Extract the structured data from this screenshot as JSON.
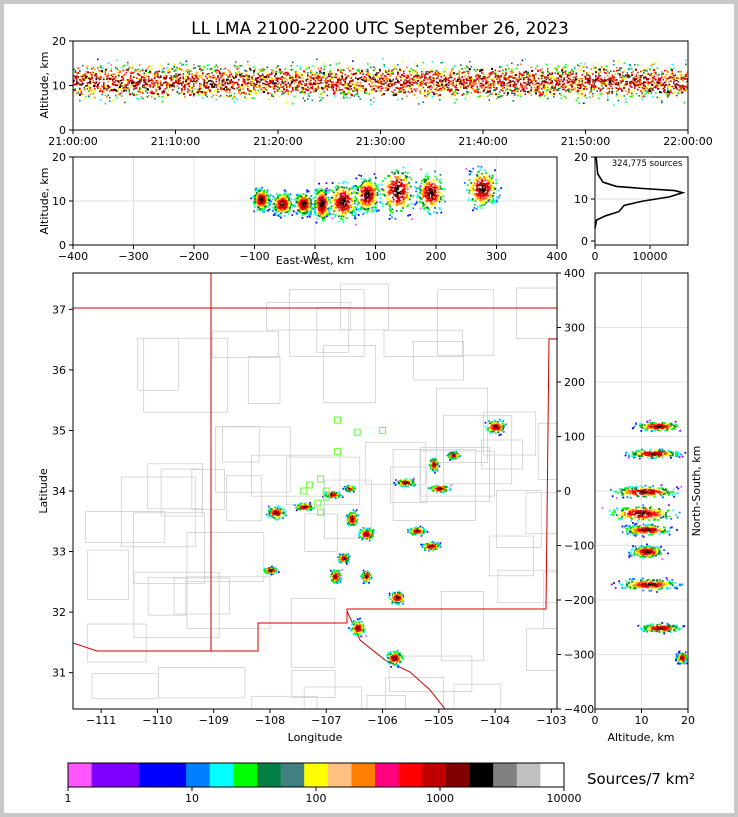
{
  "title": "LL LMA 2100-2200 UTC September 26, 2023",
  "panels": {
    "time_height": {
      "ylabel": "Altitude, km",
      "yticks": [
        "0",
        "10",
        "20"
      ],
      "xticks": [
        "21:00:00",
        "21:10:00",
        "21:20:00",
        "21:30:00",
        "21:40:00",
        "21:50:00",
        "22:00:00"
      ]
    },
    "ew_height": {
      "ylabel": "Altitude, km",
      "xlabel": "East-West, km",
      "yticks": [
        "0",
        "10",
        "20"
      ],
      "xticks": [
        "−400",
        "−300",
        "−200",
        "−100",
        "0",
        "100",
        "200",
        "300",
        "400"
      ]
    },
    "histogram": {
      "annotation": "324,775 sources",
      "yticks": [
        "0",
        "10",
        "20"
      ],
      "xticks": [
        "0",
        "10000"
      ]
    },
    "plan_view": {
      "ylabel": "Latitude",
      "xlabel": "Longitude",
      "yticks": [
        "31",
        "32",
        "33",
        "34",
        "35",
        "36",
        "37"
      ],
      "xticks": [
        "−111",
        "−110",
        "−109",
        "−108",
        "−107",
        "−106",
        "−105",
        "−104",
        "−103"
      ]
    },
    "ns_height": {
      "ylabel": "North-South, km",
      "xlabel": "Altitude, km",
      "yticks": [
        "−400",
        "−300",
        "−200",
        "−100",
        "0",
        "100",
        "200",
        "300",
        "400"
      ],
      "xticks": [
        "0",
        "10",
        "20"
      ]
    }
  },
  "colorbar": {
    "label": "Sources/7 km²",
    "ticks": [
      "1",
      "10",
      "100",
      "1000",
      "10000"
    ],
    "colors": [
      "#ff55ff",
      "#8000ff",
      "#8000ff",
      "#0000ff",
      "#0000ff",
      "#0080ff",
      "#00ffff",
      "#00ff00",
      "#008040",
      "#408080",
      "#ffff00",
      "#ffc080",
      "#ff8000",
      "#ff0080",
      "#ff0000",
      "#c00000",
      "#800000",
      "#000000",
      "#808080",
      "#c0c0c0",
      "#ffffff"
    ]
  },
  "chart_data": [
    {
      "type": "heatmap",
      "title": "LL LMA 2100-2200 UTC September 26, 2023",
      "xlabel": "",
      "ylabel": "Altitude, km",
      "xlim": [
        "21:00:00",
        "22:00:00"
      ],
      "ylim": [
        0,
        20
      ],
      "core_altitude_km": [
        8,
        14
      ]
    },
    {
      "type": "heatmap",
      "xlabel": "East-West, km",
      "ylabel": "Altitude, km",
      "xlim": [
        -400,
        400
      ],
      "ylim": [
        0,
        20
      ],
      "cells": [
        {
          "x": -90,
          "alt": [
            7,
            14
          ]
        },
        {
          "x": -55,
          "alt": [
            6,
            13
          ]
        },
        {
          "x": -20,
          "alt": [
            6,
            13
          ]
        },
        {
          "x": 10,
          "alt": [
            4,
            15
          ]
        },
        {
          "x": 45,
          "alt": [
            4,
            16
          ]
        },
        {
          "x": 85,
          "alt": [
            6,
            17
          ]
        },
        {
          "x": 135,
          "alt": [
            5,
            20
          ]
        },
        {
          "x": 190,
          "alt": [
            6,
            18
          ]
        },
        {
          "x": 275,
          "alt": [
            7,
            19
          ]
        }
      ]
    },
    {
      "type": "line",
      "xlabel": "",
      "ylabel": "",
      "xlim": [
        0,
        17500
      ],
      "ylim": [
        0,
        20
      ],
      "x": [
        0,
        300,
        2000,
        4500,
        5500,
        9000,
        14000,
        16500,
        15000,
        9000,
        4000,
        1500,
        500,
        200
      ],
      "y": [
        3,
        5,
        6,
        7,
        8.5,
        9.5,
        10.5,
        11.5,
        12,
        12.5,
        13,
        14,
        16,
        20
      ]
    },
    {
      "type": "heatmap",
      "xlabel": "Longitude",
      "ylabel": "Latitude",
      "xlim": [
        -111.5,
        -102.9
      ],
      "ylim": [
        30.4,
        37.6
      ],
      "cells": [
        {
          "lon": -104.0,
          "lat": 35.07
        },
        {
          "lon": -104.75,
          "lat": 34.6
        },
        {
          "lon": -105.1,
          "lat": 34.45
        },
        {
          "lon": -105.0,
          "lat": 34.05
        },
        {
          "lon": -105.6,
          "lat": 34.15
        },
        {
          "lon": -106.6,
          "lat": 34.05
        },
        {
          "lon": -106.9,
          "lat": 33.95
        },
        {
          "lon": -107.4,
          "lat": 33.75
        },
        {
          "lon": -106.55,
          "lat": 33.55
        },
        {
          "lon": -107.9,
          "lat": 33.65
        },
        {
          "lon": -105.4,
          "lat": 33.35
        },
        {
          "lon": -105.15,
          "lat": 33.1
        },
        {
          "lon": -106.3,
          "lat": 33.3
        },
        {
          "lon": -106.7,
          "lat": 32.9
        },
        {
          "lon": -106.3,
          "lat": 32.6
        },
        {
          "lon": -105.75,
          "lat": 32.25
        },
        {
          "lon": -106.85,
          "lat": 32.6
        },
        {
          "lon": -106.45,
          "lat": 31.75
        },
        {
          "lon": -105.8,
          "lat": 31.25
        },
        {
          "lon": -108.0,
          "lat": 32.7
        }
      ]
    },
    {
      "type": "heatmap",
      "xlabel": "Altitude, km",
      "ylabel": "North-South, km",
      "xlim": [
        0,
        20
      ],
      "ylim": [
        -400,
        400
      ],
      "bands": [
        {
          "ns": 120,
          "alt": [
            7,
            20
          ]
        },
        {
          "ns": 70,
          "alt": [
            5,
            20
          ]
        },
        {
          "ns": 0,
          "alt": [
            1,
            20
          ]
        },
        {
          "ns": -40,
          "alt": [
            0,
            20
          ]
        },
        {
          "ns": -70,
          "alt": [
            4,
            18
          ]
        },
        {
          "ns": -110,
          "alt": [
            6,
            16
          ]
        },
        {
          "ns": -170,
          "alt": [
            3,
            20
          ]
        },
        {
          "ns": -250,
          "alt": [
            8,
            20
          ]
        },
        {
          "ns": -305,
          "alt": [
            17,
            20
          ]
        }
      ]
    }
  ]
}
